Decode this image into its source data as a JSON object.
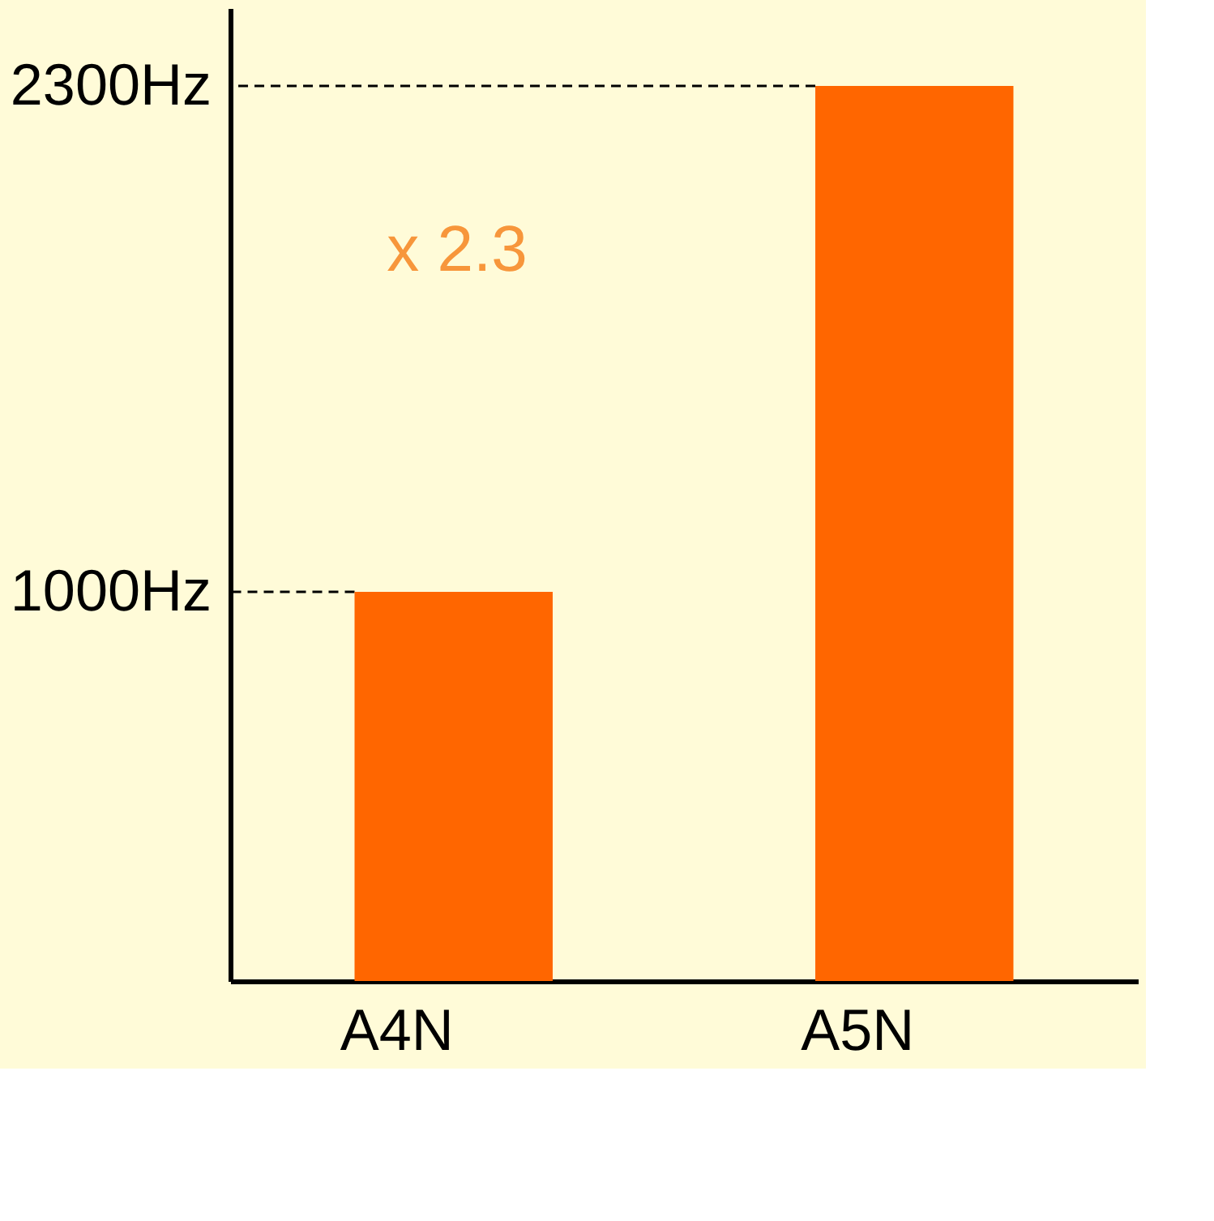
{
  "chart_data": {
    "type": "bar",
    "categories": [
      "A4N",
      "A5N"
    ],
    "values": [
      1000,
      2300
    ],
    "color": "#ff6600",
    "ylim": [
      0,
      2500
    ],
    "yticks": [
      {
        "value": 1000,
        "label": "1000Hz"
      },
      {
        "value": 2300,
        "label": "2300Hz"
      }
    ],
    "ref_lines": [
      {
        "axis": "y",
        "value": 1000,
        "line_style": "dashed",
        "color": "#000000"
      },
      {
        "axis": "y",
        "value": 2300,
        "line_style": "dashed",
        "color": "#000000"
      }
    ],
    "annotations": [
      "x 2.3"
    ],
    "grid": false
  }
}
